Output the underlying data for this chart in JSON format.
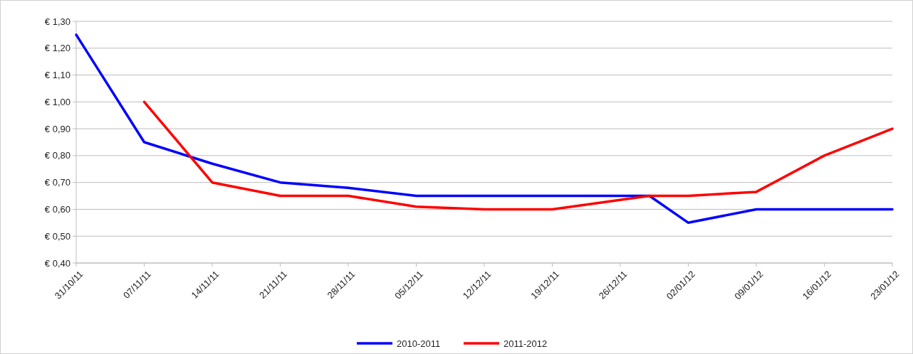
{
  "chart_data": {
    "type": "line",
    "xlim": [
      "2011-10-31",
      "2012-01-23"
    ],
    "xticks": [
      {
        "value": "2011-10-31",
        "label": "31/10/11"
      },
      {
        "value": "2011-11-07",
        "label": "07/11/11"
      },
      {
        "value": "2011-11-14",
        "label": "14/11/11"
      },
      {
        "value": "2011-11-21",
        "label": "21/11/11"
      },
      {
        "value": "2011-11-28",
        "label": "28/11/11"
      },
      {
        "value": "2011-12-05",
        "label": "05/12/11"
      },
      {
        "value": "2011-12-12",
        "label": "12/12/11"
      },
      {
        "value": "2011-12-19",
        "label": "19/12/11"
      },
      {
        "value": "2011-12-26",
        "label": "26/12/11"
      },
      {
        "value": "2012-01-02",
        "label": "02/01/12"
      },
      {
        "value": "2012-01-09",
        "label": "09/01/12"
      },
      {
        "value": "2012-01-16",
        "label": "16/01/12"
      },
      {
        "value": "2012-01-23",
        "label": "23/01/12"
      }
    ],
    "ylim": [
      0.4,
      1.3
    ],
    "yticks": [
      {
        "value": 0.4,
        "label": "€ 0,40"
      },
      {
        "value": 0.5,
        "label": "€ 0,50"
      },
      {
        "value": 0.6,
        "label": "€ 0,60"
      },
      {
        "value": 0.7,
        "label": "€ 0,70"
      },
      {
        "value": 0.8,
        "label": "€ 0,80"
      },
      {
        "value": 0.9,
        "label": "€ 0,90"
      },
      {
        "value": 1.0,
        "label": "€ 1,00"
      },
      {
        "value": 1.1,
        "label": "€ 1,10"
      },
      {
        "value": 1.2,
        "label": "€ 1,20"
      },
      {
        "value": 1.3,
        "label": "€ 1,30"
      }
    ],
    "grid": "y",
    "legend": "bottom",
    "marker": "none",
    "line_style": "solid",
    "series": [
      {
        "name": "2010-2011",
        "color": "#0000ff",
        "x": [
          "2011-10-31",
          "2011-11-07",
          "2011-11-14",
          "2011-11-21",
          "2011-11-28",
          "2011-12-05",
          "2011-12-12",
          "2011-12-19",
          "2011-12-29",
          "2012-01-02",
          "2012-01-09",
          "2012-01-16",
          "2012-01-23"
        ],
        "values": [
          1.25,
          0.85,
          0.77,
          0.7,
          0.68,
          0.65,
          0.65,
          0.65,
          0.65,
          0.55,
          0.6,
          0.6,
          0.6
        ]
      },
      {
        "name": "2011-2012",
        "color": "#ff0000",
        "x": [
          "2011-11-07",
          "2011-11-14",
          "2011-11-21",
          "2011-11-28",
          "2011-12-05",
          "2011-12-12",
          "2011-12-19",
          "2011-12-29",
          "2012-01-02",
          "2012-01-09",
          "2012-01-16",
          "2012-01-23"
        ],
        "values": [
          1.0,
          0.7,
          0.65,
          0.65,
          0.61,
          0.6,
          0.6,
          0.65,
          0.65,
          0.665,
          0.8,
          0.9
        ]
      }
    ]
  }
}
